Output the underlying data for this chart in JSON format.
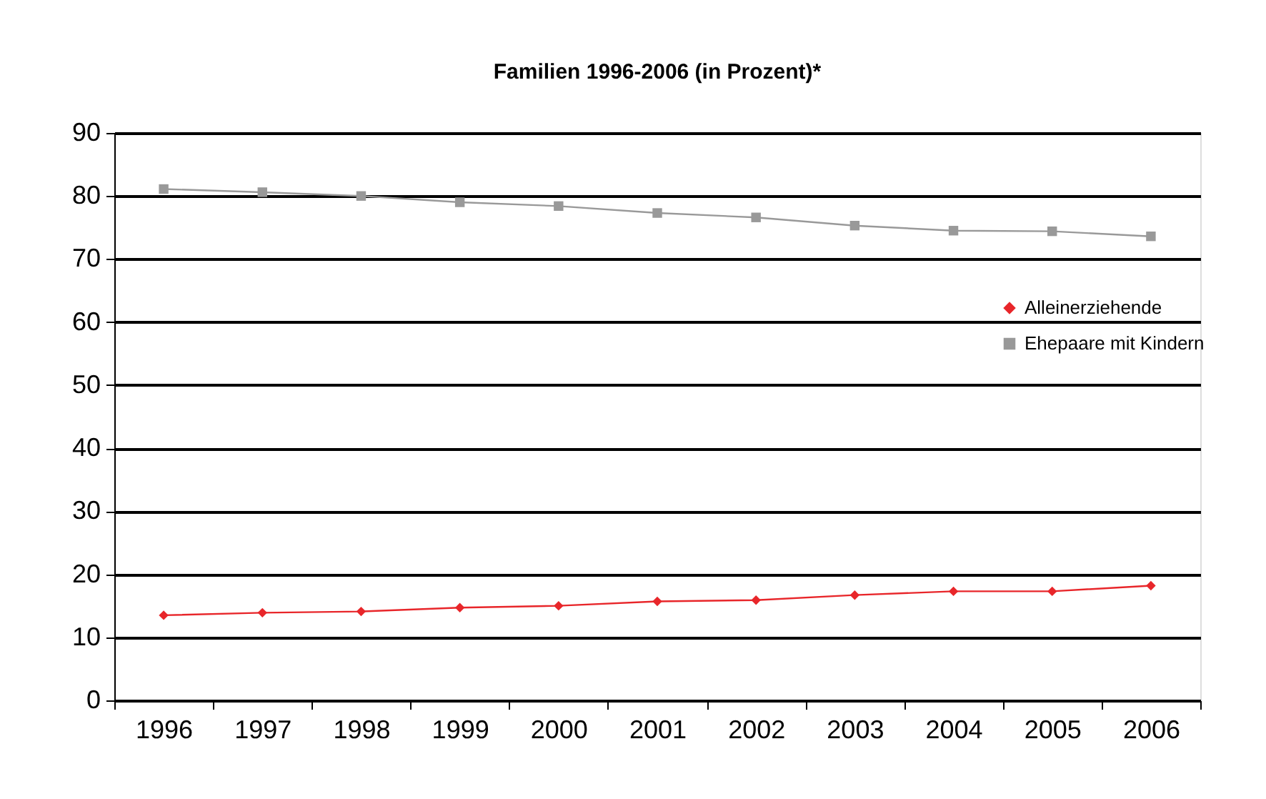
{
  "chart_data": {
    "type": "line",
    "title": "Familien 1996-2006 (in Prozent)*",
    "categories": [
      "1996",
      "1997",
      "1998",
      "1999",
      "2000",
      "2001",
      "2002",
      "2003",
      "2004",
      "2005",
      "2006"
    ],
    "series": [
      {
        "name": "Alleinerziehende",
        "color": "#e8262a",
        "marker": "diamond",
        "values": [
          13.5,
          13.9,
          14.1,
          14.7,
          15.0,
          15.7,
          15.9,
          16.7,
          17.3,
          17.3,
          18.2
        ]
      },
      {
        "name": "Ehepaare mit Kindern",
        "color": "#999999",
        "marker": "square",
        "values": [
          81.1,
          80.6,
          80.0,
          79.0,
          78.4,
          77.3,
          76.6,
          75.3,
          74.5,
          74.4,
          73.6
        ]
      }
    ],
    "ylim": [
      0,
      90
    ],
    "yticks": [
      0,
      10,
      20,
      30,
      40,
      50,
      60,
      70,
      80,
      90
    ],
    "grid": "y",
    "legend": "right",
    "line_style": "solid"
  }
}
